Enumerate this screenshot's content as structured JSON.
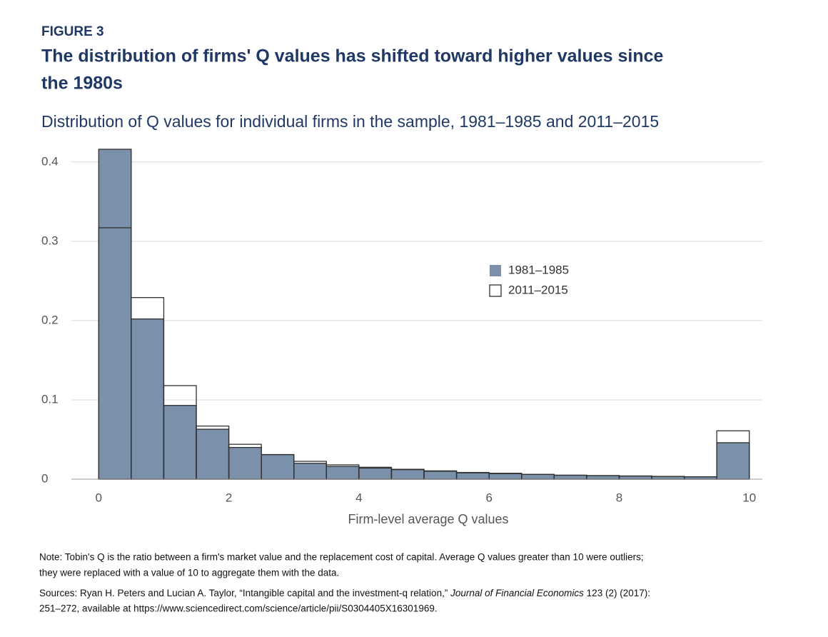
{
  "chart_data": {
    "type": "histogram",
    "figure_label": "FIGURE 3",
    "title": [
      "The distribution of firms' Q values has shifted toward higher values since",
      "the 1980s"
    ],
    "subtitle": "Distribution of Q values for individual firms in the sample, 1981–1985 and 2011–2015",
    "x_label": "Firm-level average Q values",
    "bins": [
      0,
      0.5,
      1,
      1.5,
      2,
      2.5,
      3,
      3.5,
      4,
      4.5,
      5,
      5.5,
      6,
      6.5,
      7,
      7.5,
      8,
      8.5,
      9,
      9.5,
      10
    ],
    "series": [
      {
        "name": "1981–1985",
        "color": "#7b91ab",
        "values": [
          0.416,
          0.202,
          0.093,
          0.063,
          0.04,
          0.031,
          0.02,
          0.016,
          0.014,
          0.012,
          0.01,
          0.008,
          0.007,
          0.006,
          0.005,
          0.0045,
          0.004,
          0.0035,
          0.003,
          0.046
        ]
      },
      {
        "name": "2011–2015",
        "color": "#ffffff",
        "values": [
          0.317,
          0.229,
          0.118,
          0.067,
          0.044,
          0.031,
          0.0225,
          0.018,
          0.015,
          0.0125,
          0.0105,
          0.0085,
          0.0075,
          0.006,
          0.005,
          0.0045,
          0.004,
          0.0035,
          0.003,
          0.061
        ]
      }
    ],
    "xlim": [
      -0.42,
      10.2
    ],
    "ylim": [
      0,
      0.416
    ],
    "xticks": [
      0,
      2,
      4,
      6,
      8,
      10
    ],
    "yticks": [
      0,
      0.1,
      0.2,
      0.3,
      0.4
    ],
    "grid": true,
    "legend_position": "right"
  },
  "notes": {
    "note": [
      "Note: Tobin's Q is the ratio between a firm's market value and the replacement cost of capital. Average Q values greater than 10 were outliers;",
      "they were replaced with a value of 10 to aggregate them with the data."
    ],
    "sources_start": "Sources: Ryan H. Peters and Lucian A. Taylor, “Intangible capital and the investment-q relation,” ",
    "sources_journal": "Journal of Financial Economics",
    "sources_end": " 123 (2) (2017):",
    "sources_line2": "251–272, available at https://www.sciencedirect.com/science/article/pii/S0304405X16301969."
  }
}
